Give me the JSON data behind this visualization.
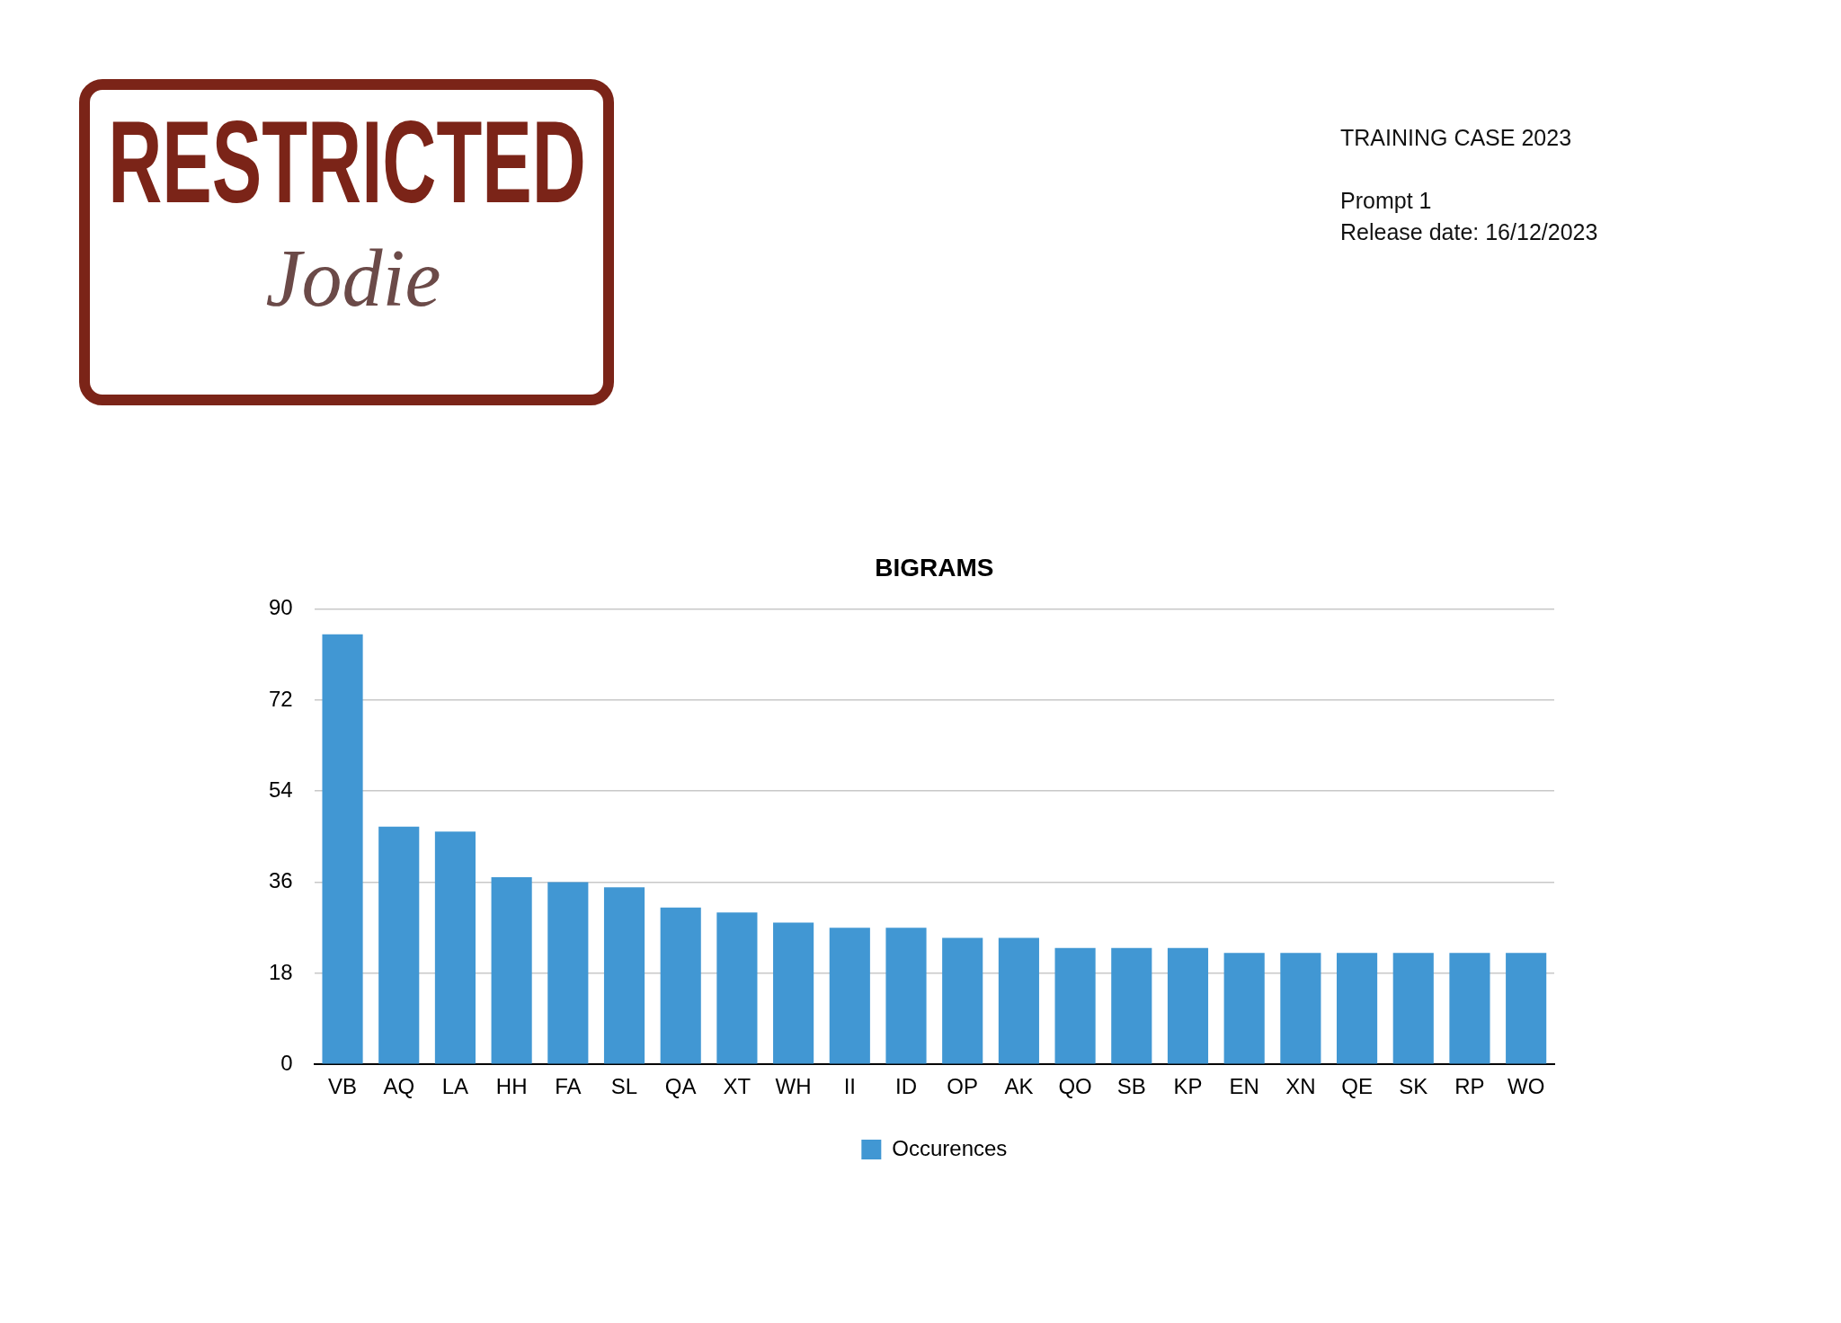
{
  "chart_data": {
    "type": "bar",
    "title": "BIGRAMS",
    "categories": [
      "VB",
      "AQ",
      "LA",
      "HH",
      "FA",
      "SL",
      "QA",
      "XT",
      "WH",
      "II",
      "ID",
      "OP",
      "AK",
      "QO",
      "SB",
      "KP",
      "EN",
      "XN",
      "QE",
      "SK",
      "RP",
      "WO"
    ],
    "series": [
      {
        "name": "Occurences",
        "color": "#4197d3",
        "values": [
          85,
          47,
          46,
          37,
          36,
          35,
          31,
          30,
          28,
          27,
          27,
          25,
          25,
          23,
          23,
          23,
          22,
          22,
          22,
          22,
          22,
          22
        ]
      }
    ],
    "ylim": [
      0,
      90
    ],
    "yticks": [
      0,
      18,
      36,
      54,
      72,
      90
    ],
    "grid": "y",
    "legend": "bottom",
    "annotations": [
      "RESTRICTED",
      "Jodie",
      "TRAINING CASE 2023",
      "Prompt 1",
      "Release date: 16/12/2023"
    ]
  }
}
